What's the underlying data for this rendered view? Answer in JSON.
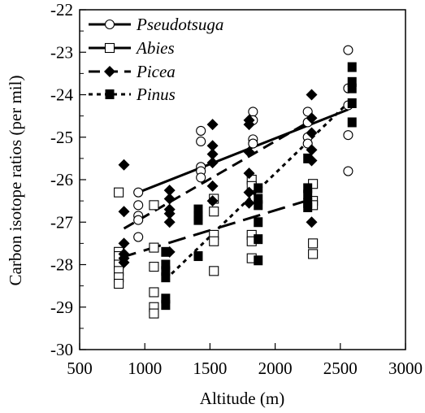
{
  "chart_data": {
    "type": "scatter",
    "title": "",
    "xlabel": "Altitude (m)",
    "ylabel": "Carbon isotope ratios (per mil)",
    "xlim": [
      500,
      3000
    ],
    "ylim": [
      -30,
      -22
    ],
    "xticks": [
      "500",
      "1000",
      "1500",
      "2000",
      "2500",
      "3000"
    ],
    "yticks": [
      "-22",
      "-23",
      "-24",
      "-25",
      "-26",
      "-27",
      "-28",
      "-29",
      "-30"
    ],
    "grid": false,
    "legend_position": "top-left",
    "series": [
      {
        "name": "Pseudotsuga",
        "marker": "open-circle",
        "line": "solid",
        "points": [
          [
            950,
            -26.3
          ],
          [
            950,
            -26.6
          ],
          [
            950,
            -26.85
          ],
          [
            950,
            -26.95
          ],
          [
            950,
            -27.35
          ],
          [
            1430,
            -24.85
          ],
          [
            1430,
            -25.1
          ],
          [
            1430,
            -25.7
          ],
          [
            1430,
            -25.8
          ],
          [
            1430,
            -25.95
          ],
          [
            1830,
            -24.4
          ],
          [
            1830,
            -24.6
          ],
          [
            1830,
            -25.05
          ],
          [
            1830,
            -25.15
          ],
          [
            2250,
            -24.4
          ],
          [
            2250,
            -24.65
          ],
          [
            2250,
            -25.0
          ],
          [
            2250,
            -25.15
          ],
          [
            2560,
            -22.95
          ],
          [
            2560,
            -23.85
          ],
          [
            2560,
            -24.25
          ],
          [
            2560,
            -24.95
          ],
          [
            2560,
            -25.8
          ]
        ],
        "fit": [
          [
            950,
            -26.3
          ],
          [
            2560,
            -24.35
          ]
        ]
      },
      {
        "name": "Abies",
        "marker": "open-square",
        "line": "long-dash",
        "points": [
          [
            800,
            -26.3
          ],
          [
            800,
            -27.7
          ],
          [
            800,
            -27.8
          ],
          [
            800,
            -28.0
          ],
          [
            800,
            -28.15
          ],
          [
            800,
            -28.3
          ],
          [
            800,
            -28.45
          ],
          [
            1070,
            -26.6
          ],
          [
            1070,
            -27.6
          ],
          [
            1070,
            -28.05
          ],
          [
            1070,
            -28.65
          ],
          [
            1070,
            -29.0
          ],
          [
            1070,
            -29.15
          ],
          [
            1530,
            -26.45
          ],
          [
            1530,
            -26.75
          ],
          [
            1530,
            -27.3
          ],
          [
            1530,
            -27.45
          ],
          [
            1530,
            -28.15
          ],
          [
            1820,
            -26.0
          ],
          [
            1820,
            -26.15
          ],
          [
            1820,
            -27.3
          ],
          [
            1820,
            -27.45
          ],
          [
            1820,
            -27.85
          ],
          [
            2290,
            -26.1
          ],
          [
            2290,
            -26.5
          ],
          [
            2290,
            -26.6
          ],
          [
            2290,
            -27.5
          ],
          [
            2290,
            -27.75
          ]
        ],
        "fit": [
          [
            800,
            -27.85
          ],
          [
            2290,
            -26.45
          ]
        ]
      },
      {
        "name": "Picea",
        "marker": "filled-diamond",
        "line": "dash",
        "points": [
          [
            840,
            -25.65
          ],
          [
            840,
            -26.75
          ],
          [
            840,
            -27.5
          ],
          [
            840,
            -27.75
          ],
          [
            840,
            -27.85
          ],
          [
            840,
            -27.95
          ],
          [
            1190,
            -26.25
          ],
          [
            1190,
            -26.45
          ],
          [
            1190,
            -26.7
          ],
          [
            1190,
            -26.8
          ],
          [
            1190,
            -27.0
          ],
          [
            1190,
            -27.7
          ],
          [
            1520,
            -24.7
          ],
          [
            1520,
            -25.2
          ],
          [
            1520,
            -25.4
          ],
          [
            1520,
            -25.6
          ],
          [
            1520,
            -26.15
          ],
          [
            1520,
            -26.5
          ],
          [
            1800,
            -24.6
          ],
          [
            1800,
            -24.7
          ],
          [
            1800,
            -25.35
          ],
          [
            1800,
            -25.85
          ],
          [
            1800,
            -26.3
          ],
          [
            1800,
            -26.55
          ],
          [
            2280,
            -24.0
          ],
          [
            2280,
            -24.55
          ],
          [
            2280,
            -24.9
          ],
          [
            2280,
            -25.3
          ],
          [
            2280,
            -25.55
          ],
          [
            2280,
            -27.0
          ]
        ],
        "fit": [
          [
            840,
            -27.15
          ],
          [
            2280,
            -24.6
          ]
        ]
      },
      {
        "name": "Pinus",
        "marker": "filled-square",
        "line": "short-dash",
        "points": [
          [
            1160,
            -27.7
          ],
          [
            1160,
            -28.0
          ],
          [
            1160,
            -28.15
          ],
          [
            1160,
            -28.3
          ],
          [
            1160,
            -28.8
          ],
          [
            1160,
            -28.95
          ],
          [
            1410,
            -26.7
          ],
          [
            1410,
            -26.85
          ],
          [
            1410,
            -26.95
          ],
          [
            1410,
            -27.8
          ],
          [
            1870,
            -26.2
          ],
          [
            1870,
            -26.45
          ],
          [
            1870,
            -26.6
          ],
          [
            1870,
            -27.0
          ],
          [
            1870,
            -27.4
          ],
          [
            1870,
            -27.9
          ],
          [
            2250,
            -25.5
          ],
          [
            2250,
            -26.2
          ],
          [
            2250,
            -26.35
          ],
          [
            2250,
            -26.55
          ],
          [
            2250,
            -26.65
          ],
          [
            2590,
            -23.35
          ],
          [
            2590,
            -23.7
          ],
          [
            2590,
            -23.85
          ],
          [
            2590,
            -24.2
          ],
          [
            2590,
            -24.65
          ]
        ],
        "fit": [
          [
            1160,
            -28.35
          ],
          [
            2590,
            -24.1
          ]
        ]
      }
    ]
  }
}
